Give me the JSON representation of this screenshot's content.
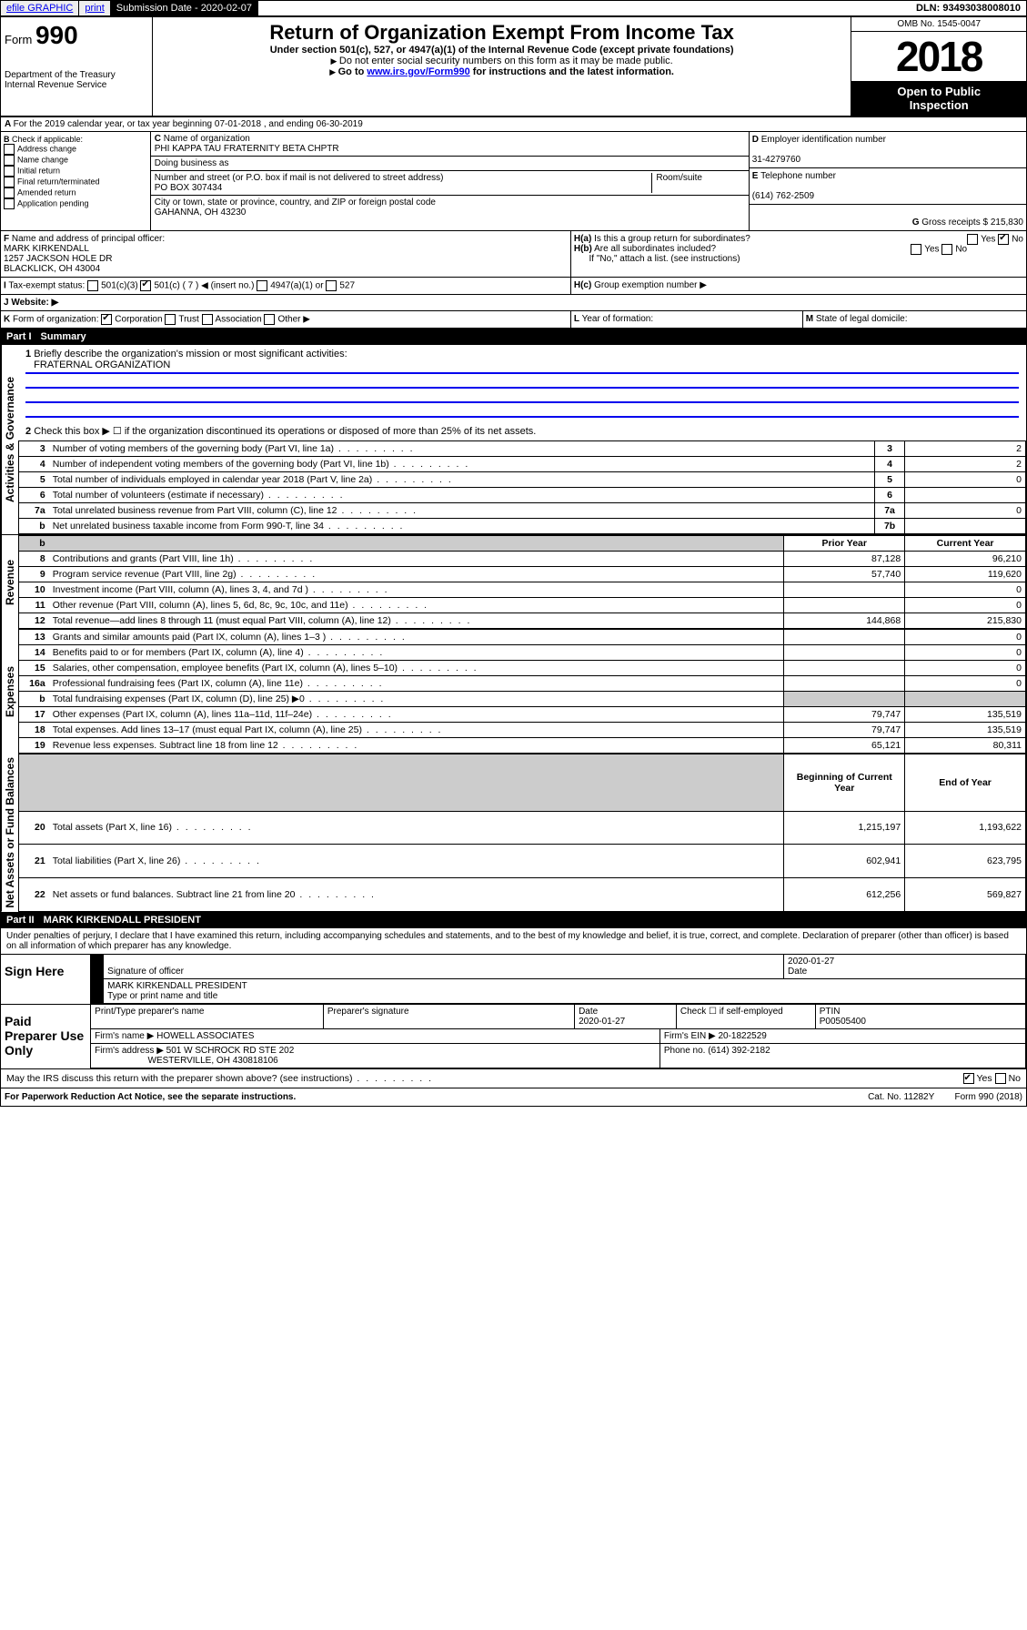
{
  "topbar": {
    "efile": "efile GRAPHIC",
    "print": "print",
    "subLabel": "Submission Date - 2020-02-07",
    "dln": "DLN: 93493038008010"
  },
  "hdr": {
    "formPrefix": "Form",
    "formNum": "990",
    "title": "Return of Organization Exempt From Income Tax",
    "sub1": "Under section 501(c), 527, or 4947(a)(1) of the Internal Revenue Code (except private foundations)",
    "sub2": "Do not enter social security numbers on this form as it may be made public.",
    "sub3": "Go to ",
    "sub3link": "www.irs.gov/Form990",
    "sub3b": " for instructions and the latest information.",
    "dept": "Department of the Treasury",
    "irs": "Internal Revenue Service",
    "omb": "OMB No. 1545-0047",
    "year": "2018",
    "open": "Open to Public",
    "insp": "Inspection"
  },
  "A": {
    "text": "For the 2019 calendar year, or tax year beginning 07-01-2018     , and ending 06-30-2019"
  },
  "B": {
    "hdr": "Check if applicable:",
    "items": [
      "Address change",
      "Name change",
      "Initial return",
      "Final return/terminated",
      "Amended return",
      "Application pending"
    ]
  },
  "C": {
    "nameLbl": "Name of organization",
    "name": "PHI KAPPA TAU FRATERNITY BETA CHPTR",
    "dba": "Doing business as",
    "addrLbl": "Number and street (or P.O. box if mail is not delivered to street address)",
    "room": "Room/suite",
    "addr": "PO BOX 307434",
    "cityLbl": "City or town, state or province, country, and ZIP or foreign postal code",
    "city": "GAHANNA, OH  43230"
  },
  "D": {
    "lbl": "Employer identification number",
    "val": "31-4279760"
  },
  "E": {
    "lbl": "Telephone number",
    "val": "(614) 762-2509"
  },
  "G": {
    "lbl": "Gross receipts $",
    "val": "215,830"
  },
  "F": {
    "lbl": "Name and address of principal officer:",
    "name": "MARK KIRKENDALL",
    "addr1": "1257 JACKSON HOLE DR",
    "addr2": "BLACKLICK, OH  43004"
  },
  "H": {
    "a": "Is this a group return for subordinates?",
    "b": "Are all subordinates included?",
    "bnote": "If \"No,\" attach a list. (see instructions)",
    "c": "Group exemption number ▶"
  },
  "tax": {
    "lbl": "Tax-exempt status:",
    "o1": "501(c)(3)",
    "o2": "501(c) ( 7 ) ◀ (insert no.)",
    "o3": "4947(a)(1) or",
    "o4": "527"
  },
  "J": {
    "lbl": "Website: ▶"
  },
  "K": {
    "lbl": "Form of organization:",
    "o1": "Corporation",
    "o2": "Trust",
    "o3": "Association",
    "o4": "Other ▶"
  },
  "L": {
    "lbl": "Year of formation:"
  },
  "M": {
    "lbl": "State of legal domicile:"
  },
  "p1": {
    "title": "Part I",
    "name": "Summary",
    "l1": "Briefly describe the organization's mission or most significant activities:",
    "l1v": "FRATERNAL ORGANIZATION",
    "l2": "Check this box ▶ ☐  if the organization discontinued its operations or disposed of more than 25% of its net assets.",
    "rows": [
      {
        "n": "3",
        "t": "Number of voting members of the governing body (Part VI, line 1a)",
        "rn": "3",
        "v": "2"
      },
      {
        "n": "4",
        "t": "Number of independent voting members of the governing body (Part VI, line 1b)",
        "rn": "4",
        "v": "2"
      },
      {
        "n": "5",
        "t": "Total number of individuals employed in calendar year 2018 (Part V, line 2a)",
        "rn": "5",
        "v": "0"
      },
      {
        "n": "6",
        "t": "Total number of volunteers (estimate if necessary)",
        "rn": "6",
        "v": ""
      },
      {
        "n": "7a",
        "t": "Total unrelated business revenue from Part VIII, column (C), line 12",
        "rn": "7a",
        "v": "0"
      },
      {
        "n": "b",
        "t": "Net unrelated business taxable income from Form 990-T, line 34",
        "rn": "7b",
        "v": ""
      }
    ],
    "col1": "Prior Year",
    "col2": "Current Year",
    "rev": [
      {
        "n": "8",
        "t": "Contributions and grants (Part VIII, line 1h)",
        "p": "87,128",
        "c": "96,210"
      },
      {
        "n": "9",
        "t": "Program service revenue (Part VIII, line 2g)",
        "p": "57,740",
        "c": "119,620"
      },
      {
        "n": "10",
        "t": "Investment income (Part VIII, column (A), lines 3, 4, and 7d )",
        "p": "",
        "c": "0"
      },
      {
        "n": "11",
        "t": "Other revenue (Part VIII, column (A), lines 5, 6d, 8c, 9c, 10c, and 11e)",
        "p": "",
        "c": "0"
      },
      {
        "n": "12",
        "t": "Total revenue—add lines 8 through 11 (must equal Part VIII, column (A), line 12)",
        "p": "144,868",
        "c": "215,830"
      }
    ],
    "exp": [
      {
        "n": "13",
        "t": "Grants and similar amounts paid (Part IX, column (A), lines 1–3 )",
        "p": "",
        "c": "0"
      },
      {
        "n": "14",
        "t": "Benefits paid to or for members (Part IX, column (A), line 4)",
        "p": "",
        "c": "0"
      },
      {
        "n": "15",
        "t": "Salaries, other compensation, employee benefits (Part IX, column (A), lines 5–10)",
        "p": "",
        "c": "0"
      },
      {
        "n": "16a",
        "t": "Professional fundraising fees (Part IX, column (A), line 11e)",
        "p": "",
        "c": "0"
      },
      {
        "n": "b",
        "t": "Total fundraising expenses (Part IX, column (D), line 25) ▶0",
        "p": "GREY",
        "c": "GREY"
      },
      {
        "n": "17",
        "t": "Other expenses (Part IX, column (A), lines 11a–11d, 11f–24e)",
        "p": "79,747",
        "c": "135,519"
      },
      {
        "n": "18",
        "t": "Total expenses. Add lines 13–17 (must equal Part IX, column (A), line 25)",
        "p": "79,747",
        "c": "135,519"
      },
      {
        "n": "19",
        "t": "Revenue less expenses. Subtract line 18 from line 12",
        "p": "65,121",
        "c": "80,311"
      }
    ],
    "col3": "Beginning of Current Year",
    "col4": "End of Year",
    "net": [
      {
        "n": "20",
        "t": "Total assets (Part X, line 16)",
        "p": "1,215,197",
        "c": "1,193,622"
      },
      {
        "n": "21",
        "t": "Total liabilities (Part X, line 26)",
        "p": "602,941",
        "c": "623,795"
      },
      {
        "n": "22",
        "t": "Net assets or fund balances. Subtract line 21 from line 20",
        "p": "612,256",
        "c": "569,827"
      }
    ],
    "sideA": "Activities & Governance",
    "sideR": "Revenue",
    "sideE": "Expenses",
    "sideN": "Net Assets or Fund Balances"
  },
  "p2": {
    "title": "Part II",
    "name": "MARK KIRKENDALL  PRESIDENT",
    "decl": "Under penalties of perjury, I declare that I have examined this return, including accompanying schedules and statements, and to the best of my knowledge and belief, it is true, correct, and complete. Declaration of preparer (other than officer) is based on all information of which preparer has any knowledge.",
    "sign": "Sign Here",
    "sigOff": "Signature of officer",
    "sigDate": "2020-01-27",
    "dateLbl": "Date",
    "nameLbl": "Type or print name and title",
    "paid": "Paid Preparer Use Only",
    "pp1": "Print/Type preparer's name",
    "pp2": "Preparer's signature",
    "pp3": "Date",
    "pp3v": "2020-01-27",
    "pp4": "Check ☐ if self-employed",
    "pp5": "PTIN",
    "pp5v": "P00505400",
    "firm": "Firm's name    ▶",
    "firmv": "HOWELL ASSOCIATES",
    "ein": "Firm's EIN ▶",
    "einv": "20-1822529",
    "faddr": "Firm's address ▶",
    "faddrv": "501 W SCHROCK RD STE 202",
    "faddr2": "WESTERVILLE, OH  430818106",
    "phone": "Phone no.",
    "phonev": "(614) 392-2182",
    "discuss": "May the IRS discuss this return with the preparer shown above? (see instructions)"
  },
  "foot": {
    "l": "For Paperwork Reduction Act Notice, see the separate instructions.",
    "m": "Cat. No. 11282Y",
    "r": "Form 990 (2018)"
  }
}
